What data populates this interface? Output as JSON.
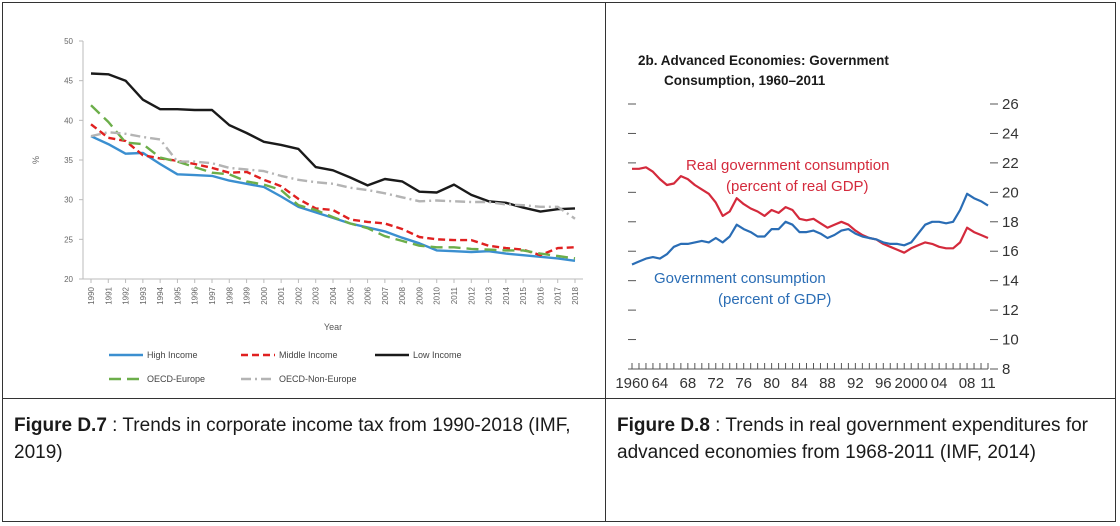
{
  "figures": [
    {
      "caption_label": "Figure D.7",
      "caption_sep": " : ",
      "caption_text": "Trends in corporate income tax from 1990-2018 (IMF, 2019)"
    },
    {
      "caption_label": "Figure D.8",
      "caption_sep": " : ",
      "caption_text": "Trends in real government expenditures for advanced economies from 1968-2011 (IMF, 2014)"
    }
  ],
  "chart_data": [
    {
      "type": "line",
      "title": "",
      "xlabel": "Year",
      "ylabel": "%",
      "ylim": [
        20,
        50
      ],
      "yticks": [
        20,
        25,
        30,
        35,
        40,
        45,
        50
      ],
      "x": [
        1990,
        1991,
        1992,
        1993,
        1994,
        1995,
        1996,
        1997,
        1998,
        1999,
        2000,
        2001,
        2002,
        2003,
        2004,
        2005,
        2006,
        2007,
        2008,
        2009,
        2010,
        2011,
        2012,
        2013,
        2014,
        2015,
        2016,
        2017,
        2018
      ],
      "legend_position": "bottom",
      "series": [
        {
          "name": "High Income",
          "color": "#3b8fd0",
          "dash": "solid",
          "values": [
            38.0,
            37.0,
            35.8,
            35.9,
            34.5,
            33.2,
            33.1,
            33.0,
            32.4,
            32.0,
            31.6,
            30.4,
            29.1,
            28.4,
            27.7,
            27.0,
            26.5,
            26.0,
            25.2,
            24.5,
            23.6,
            23.5,
            23.4,
            23.5,
            23.2,
            23.0,
            22.8,
            22.6,
            22.3
          ]
        },
        {
          "name": "Middle Income",
          "color": "#e02020",
          "dash": "dashed",
          "values": [
            39.5,
            37.8,
            37.4,
            35.6,
            35.2,
            34.9,
            34.5,
            34.0,
            33.4,
            33.5,
            32.5,
            31.7,
            30.1,
            28.9,
            28.7,
            27.5,
            27.2,
            27.0,
            26.3,
            25.3,
            25.0,
            24.9,
            24.9,
            24.2,
            23.9,
            23.7,
            23.0,
            23.9,
            24.0
          ]
        },
        {
          "name": "Low Income",
          "color": "#1a1a1a",
          "dash": "solid",
          "values": [
            45.9,
            45.8,
            45.0,
            42.6,
            41.4,
            41.4,
            41.3,
            41.3,
            39.4,
            38.4,
            37.3,
            36.9,
            36.4,
            34.1,
            33.7,
            32.8,
            31.8,
            32.6,
            32.3,
            31.0,
            30.9,
            31.9,
            30.6,
            29.8,
            29.6,
            29.0,
            28.5,
            28.8,
            28.9
          ]
        },
        {
          "name": "OECD-Europe",
          "color": "#6cae4a",
          "dash": "longdash",
          "values": [
            41.9,
            39.8,
            37.2,
            37.0,
            35.3,
            34.8,
            34.1,
            33.4,
            33.2,
            32.3,
            31.9,
            31.2,
            29.3,
            28.7,
            27.8,
            27.0,
            26.4,
            25.4,
            24.8,
            24.2,
            24.0,
            24.0,
            23.8,
            23.7,
            23.6,
            23.6,
            23.2,
            22.9,
            22.6
          ]
        },
        {
          "name": "OECD-Non-Europe",
          "color": "#b4b4b4",
          "dash": "dashdot",
          "values": [
            38.0,
            38.5,
            38.3,
            37.9,
            37.6,
            34.8,
            34.8,
            34.6,
            34.0,
            33.8,
            33.6,
            33.0,
            32.5,
            32.2,
            32.0,
            31.5,
            31.2,
            30.8,
            30.3,
            29.8,
            29.9,
            29.8,
            29.7,
            29.7,
            29.4,
            29.3,
            29.1,
            29.1,
            27.6
          ]
        }
      ]
    },
    {
      "type": "line",
      "title": "2b. Advanced Economies: Government Consumption, 1960–2011",
      "title_lines": [
        "2b. Advanced Economies: Government",
        "Consumption, 1960–2011"
      ],
      "xlabel": "",
      "ylabel": "",
      "ylim": [
        8,
        26
      ],
      "yticks": [
        8,
        10,
        12,
        14,
        16,
        18,
        20,
        22,
        24,
        26
      ],
      "xlim": [
        1960,
        2011
      ],
      "xtick_labels": [
        {
          "year": 1960,
          "label": "1960"
        },
        {
          "year": 1964,
          "label": "64"
        },
        {
          "year": 1968,
          "label": "68"
        },
        {
          "year": 1972,
          "label": "72"
        },
        {
          "year": 1976,
          "label": "76"
        },
        {
          "year": 1980,
          "label": "80"
        },
        {
          "year": 1984,
          "label": "84"
        },
        {
          "year": 1988,
          "label": "88"
        },
        {
          "year": 1992,
          "label": "92"
        },
        {
          "year": 1996,
          "label": "96"
        },
        {
          "year": 2000,
          "label": "2000"
        },
        {
          "year": 2004,
          "label": "04"
        },
        {
          "year": 2008,
          "label": "08"
        },
        {
          "year": 2011,
          "label": "11"
        }
      ],
      "annotations": [
        {
          "series": "Real government consumption",
          "lines": [
            "Real government consumption",
            "(percent of real GDP)"
          ]
        },
        {
          "series": "Government consumption",
          "lines": [
            "Government consumption",
            "(percent of GDP)"
          ]
        }
      ],
      "series": [
        {
          "name": "Real government consumption",
          "color": "#d42a3c",
          "x": [
            1960,
            1961,
            1962,
            1963,
            1964,
            1965,
            1966,
            1967,
            1968,
            1969,
            1970,
            1971,
            1972,
            1973,
            1974,
            1975,
            1976,
            1977,
            1978,
            1979,
            1980,
            1981,
            1982,
            1983,
            1984,
            1985,
            1986,
            1987,
            1988,
            1989,
            1990,
            1991,
            1992,
            1993,
            1994,
            1995,
            1996,
            1997,
            1998,
            1999,
            2000,
            2001,
            2002,
            2003,
            2004,
            2005,
            2006,
            2007,
            2008,
            2009,
            2010,
            2011
          ],
          "values": [
            21.6,
            21.6,
            21.7,
            21.4,
            20.9,
            20.5,
            20.6,
            21.1,
            20.9,
            20.5,
            20.2,
            19.9,
            19.3,
            18.4,
            18.7,
            19.6,
            19.2,
            18.9,
            18.7,
            18.4,
            18.8,
            18.6,
            19.0,
            18.8,
            18.2,
            18.1,
            18.2,
            17.9,
            17.6,
            17.8,
            18.0,
            17.8,
            17.4,
            17.1,
            16.9,
            16.8,
            16.5,
            16.3,
            16.1,
            15.9,
            16.2,
            16.4,
            16.6,
            16.5,
            16.3,
            16.2,
            16.2,
            16.6,
            17.6,
            17.3,
            17.1,
            16.9
          ]
        },
        {
          "name": "Government consumption",
          "color": "#2a6db5",
          "x": [
            1960,
            1961,
            1962,
            1963,
            1964,
            1965,
            1966,
            1967,
            1968,
            1969,
            1970,
            1971,
            1972,
            1973,
            1974,
            1975,
            1976,
            1977,
            1978,
            1979,
            1980,
            1981,
            1982,
            1983,
            1984,
            1985,
            1986,
            1987,
            1988,
            1989,
            1990,
            1991,
            1992,
            1993,
            1994,
            1995,
            1996,
            1997,
            1998,
            1999,
            2000,
            2001,
            2002,
            2003,
            2004,
            2005,
            2006,
            2007,
            2008,
            2009,
            2010,
            2011
          ],
          "values": [
            15.1,
            15.3,
            15.5,
            15.6,
            15.5,
            15.8,
            16.3,
            16.5,
            16.5,
            16.6,
            16.7,
            16.6,
            16.9,
            16.6,
            17.0,
            17.8,
            17.5,
            17.3,
            17.0,
            17.0,
            17.5,
            17.5,
            18.0,
            17.8,
            17.3,
            17.3,
            17.4,
            17.2,
            16.9,
            17.1,
            17.4,
            17.5,
            17.2,
            17.0,
            16.9,
            16.8,
            16.6,
            16.5,
            16.5,
            16.4,
            16.6,
            17.2,
            17.8,
            18.0,
            18.0,
            17.9,
            18.0,
            18.8,
            19.9,
            19.6,
            19.4,
            19.1
          ]
        }
      ]
    }
  ]
}
